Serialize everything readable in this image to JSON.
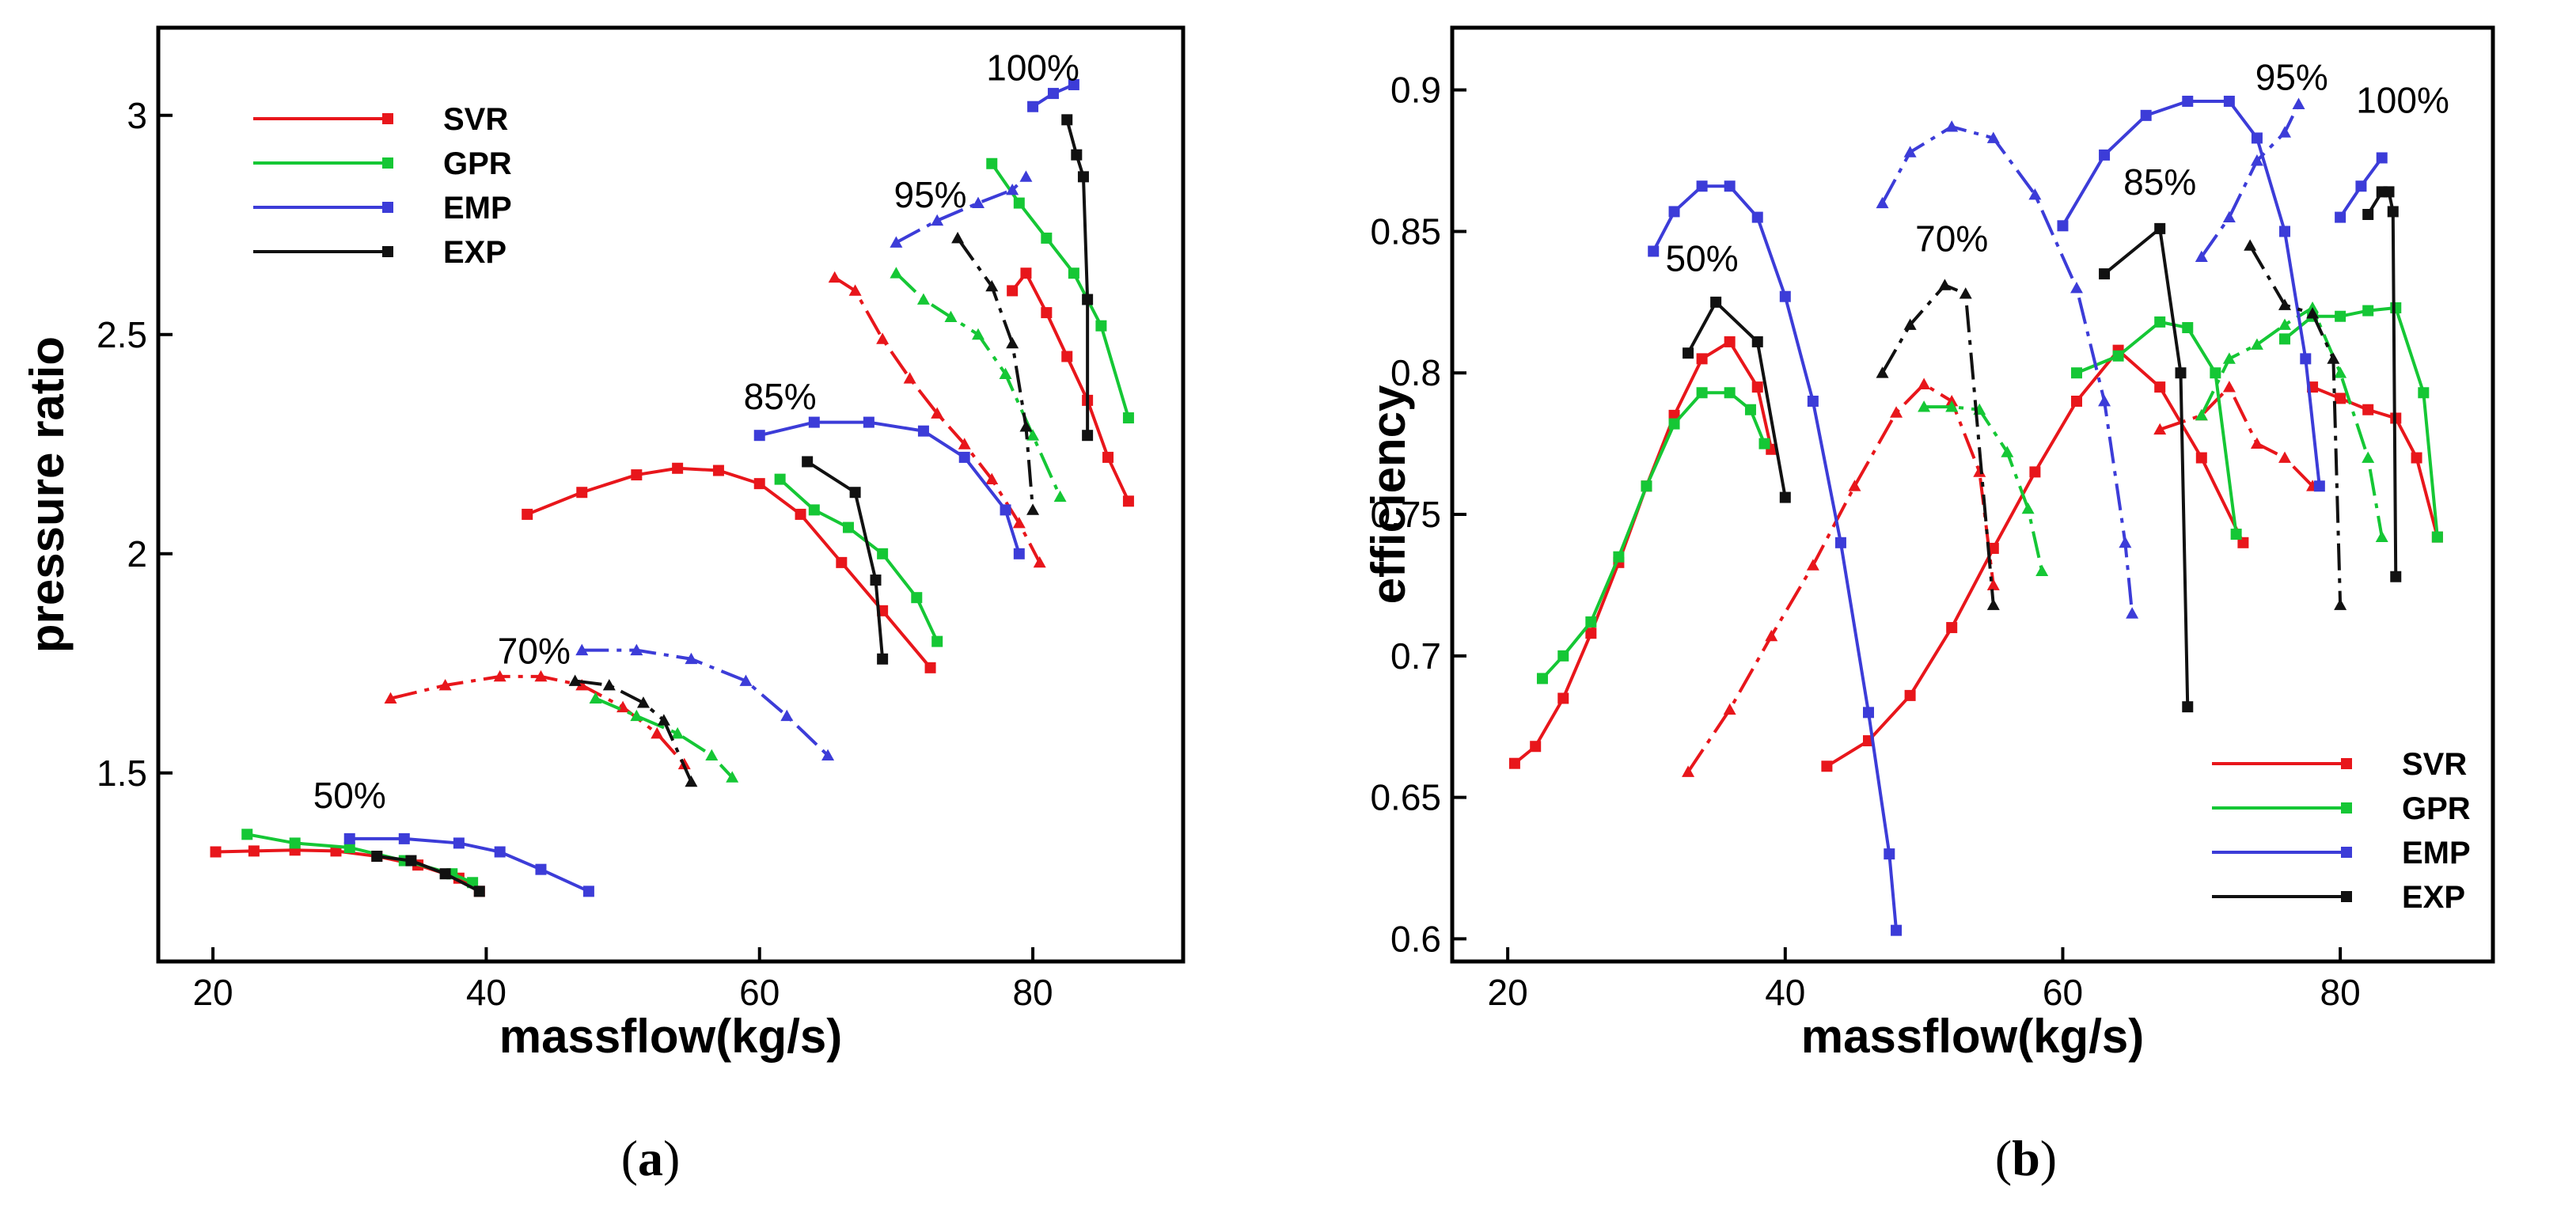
{
  "chart_data": [
    {
      "type": "line",
      "caption": "a",
      "xlabel": "massflow(kg/s)",
      "ylabel": "pressure ratio",
      "xlim": [
        16,
        91
      ],
      "ylim": [
        1.07,
        3.2
      ],
      "xticks": [
        20,
        40,
        60,
        80
      ],
      "yticks": [
        1.5,
        2,
        2.5,
        3
      ],
      "ytick_labels": [
        "1.5",
        "2",
        "2.5",
        "3"
      ],
      "legend": {
        "placement": "top-left",
        "entries": [
          "SVR",
          "GPR",
          "EMP",
          "EXP"
        ]
      },
      "speed_labels": [
        {
          "text": "50%",
          "x": 30,
          "y": 1.42
        },
        {
          "text": "70%",
          "x": 43.5,
          "y": 1.75
        },
        {
          "text": "85%",
          "x": 61.5,
          "y": 2.33
        },
        {
          "text": "95%",
          "x": 72.5,
          "y": 2.79
        },
        {
          "text": "100%",
          "x": 80,
          "y": 3.08
        }
      ],
      "series": [
        {
          "name": "SVR",
          "color": "#e8161b",
          "marker": "square",
          "speed": "50%",
          "x": [
            20.2,
            23,
            26,
            29,
            32,
            35,
            38,
            39.5
          ],
          "y": [
            1.32,
            1.322,
            1.324,
            1.322,
            1.31,
            1.29,
            1.26,
            1.23
          ]
        },
        {
          "name": "SVR",
          "color": "#e8161b",
          "marker": "triangle",
          "speed": "70%",
          "x": [
            33,
            37,
            41,
            44,
            47,
            50,
            52.5,
            54.5
          ],
          "y": [
            1.67,
            1.7,
            1.72,
            1.72,
            1.7,
            1.65,
            1.59,
            1.52
          ]
        },
        {
          "name": "SVR",
          "color": "#e8161b",
          "marker": "square",
          "speed": "85%",
          "x": [
            43,
            47,
            51,
            54,
            57,
            60,
            63,
            66,
            69,
            72.5
          ],
          "y": [
            2.09,
            2.14,
            2.18,
            2.195,
            2.19,
            2.16,
            2.09,
            1.98,
            1.87,
            1.74
          ]
        },
        {
          "name": "SVR",
          "color": "#e8161b",
          "marker": "triangle",
          "speed": "95%",
          "x": [
            65.5,
            67,
            69,
            71,
            73,
            75,
            77,
            79,
            80.5
          ],
          "y": [
            2.63,
            2.6,
            2.49,
            2.4,
            2.32,
            2.25,
            2.17,
            2.07,
            1.98
          ]
        },
        {
          "name": "SVR",
          "color": "#e8161b",
          "marker": "square",
          "speed": "100%",
          "x": [
            78.5,
            79.5,
            81,
            82.5,
            84,
            85.5,
            87
          ],
          "y": [
            2.6,
            2.64,
            2.55,
            2.45,
            2.35,
            2.22,
            2.12
          ]
        },
        {
          "name": "GPR",
          "color": "#15c735",
          "marker": "square",
          "speed": "50%",
          "x": [
            22.5,
            26,
            30,
            34,
            37.5,
            39
          ],
          "y": [
            1.36,
            1.34,
            1.33,
            1.3,
            1.27,
            1.25
          ]
        },
        {
          "name": "GPR",
          "color": "#15c735",
          "marker": "triangle",
          "speed": "70%",
          "x": [
            48,
            51,
            54,
            56.5,
            58
          ],
          "y": [
            1.67,
            1.63,
            1.59,
            1.54,
            1.49
          ]
        },
        {
          "name": "GPR",
          "color": "#15c735",
          "marker": "square",
          "speed": "85%",
          "x": [
            61.5,
            64,
            66.5,
            69,
            71.5,
            73
          ],
          "y": [
            2.17,
            2.1,
            2.06,
            2.0,
            1.9,
            1.8
          ]
        },
        {
          "name": "GPR",
          "color": "#15c735",
          "marker": "triangle",
          "speed": "95%",
          "x": [
            70,
            72,
            74,
            76,
            78,
            80,
            82
          ],
          "y": [
            2.64,
            2.58,
            2.54,
            2.5,
            2.41,
            2.27,
            2.13
          ]
        },
        {
          "name": "GPR",
          "color": "#15c735",
          "marker": "square",
          "speed": "100%",
          "x": [
            77,
            79,
            81,
            83,
            85,
            87
          ],
          "y": [
            2.89,
            2.8,
            2.72,
            2.64,
            2.52,
            2.31
          ]
        },
        {
          "name": "EMP",
          "color": "#3c3cd8",
          "marker": "square",
          "speed": "50%",
          "x": [
            30,
            34,
            38,
            41,
            44,
            47.5
          ],
          "y": [
            1.35,
            1.35,
            1.34,
            1.32,
            1.28,
            1.23
          ]
        },
        {
          "name": "EMP",
          "color": "#3c3cd8",
          "marker": "triangle",
          "speed": "70%",
          "x": [
            47,
            51,
            55,
            59,
            62,
            65
          ],
          "y": [
            1.78,
            1.78,
            1.76,
            1.71,
            1.63,
            1.54
          ]
        },
        {
          "name": "EMP",
          "color": "#3c3cd8",
          "marker": "square",
          "speed": "85%",
          "x": [
            60,
            64,
            68,
            72,
            75,
            78,
            79
          ],
          "y": [
            2.27,
            2.3,
            2.3,
            2.28,
            2.22,
            2.1,
            2.0
          ]
        },
        {
          "name": "EMP",
          "color": "#3c3cd8",
          "marker": "triangle",
          "speed": "95%",
          "x": [
            70,
            73,
            76,
            78.5,
            79.5
          ],
          "y": [
            2.71,
            2.76,
            2.8,
            2.83,
            2.86
          ]
        },
        {
          "name": "EMP",
          "color": "#3c3cd8",
          "marker": "square",
          "speed": "100%",
          "x": [
            80,
            81.5,
            83
          ],
          "y": [
            3.02,
            3.05,
            3.07
          ]
        },
        {
          "name": "EXP",
          "color": "#111111",
          "marker": "square",
          "speed": "50%",
          "x": [
            32,
            34.5,
            37,
            39.5
          ],
          "y": [
            1.31,
            1.3,
            1.27,
            1.23
          ]
        },
        {
          "name": "EXP",
          "color": "#111111",
          "marker": "triangle",
          "speed": "70%",
          "x": [
            46.5,
            49,
            51.5,
            53,
            55
          ],
          "y": [
            1.71,
            1.7,
            1.66,
            1.62,
            1.48
          ]
        },
        {
          "name": "EXP",
          "color": "#111111",
          "marker": "square",
          "speed": "85%",
          "x": [
            63.5,
            67,
            68.5,
            69
          ],
          "y": [
            2.21,
            2.14,
            1.94,
            1.76
          ]
        },
        {
          "name": "EXP",
          "color": "#111111",
          "marker": "triangle",
          "speed": "95%",
          "x": [
            74.5,
            77,
            78.5,
            79.5,
            80
          ],
          "y": [
            2.72,
            2.61,
            2.48,
            2.29,
            2.1
          ]
        },
        {
          "name": "EXP",
          "color": "#111111",
          "marker": "square",
          "speed": "100%",
          "x": [
            82.5,
            83.2,
            83.7,
            84,
            84
          ],
          "y": [
            2.99,
            2.91,
            2.86,
            2.58,
            2.27
          ]
        }
      ]
    },
    {
      "type": "line",
      "caption": "b",
      "xlabel": "massflow(kg/s)",
      "ylabel": "efficiency",
      "xlim": [
        16,
        91
      ],
      "ylim": [
        0.592,
        0.922
      ],
      "xticks": [
        20,
        40,
        60,
        80
      ],
      "yticks": [
        0.6,
        0.65,
        0.7,
        0.75,
        0.8,
        0.85,
        0.9
      ],
      "ytick_labels": [
        "0.6",
        "0.65",
        "0.7",
        "0.75",
        "0.8",
        "0.85",
        "0.9"
      ],
      "legend": {
        "placement": "bottom-right",
        "entries": [
          "SVR",
          "GPR",
          "EMP",
          "EXP"
        ]
      },
      "speed_labels": [
        {
          "text": "50%",
          "x": 34,
          "y": 0.836
        },
        {
          "text": "70%",
          "x": 52,
          "y": 0.843
        },
        {
          "text": "85%",
          "x": 67,
          "y": 0.863
        },
        {
          "text": "95%",
          "x": 76.5,
          "y": 0.9
        },
        {
          "text": "100%",
          "x": 84.5,
          "y": 0.892
        }
      ],
      "series": [
        {
          "name": "SVR",
          "color": "#e8161b",
          "marker": "square",
          "speed": "50%",
          "x": [
            20.5,
            22,
            24,
            26,
            28,
            30,
            32,
            34,
            36,
            38,
            39
          ],
          "y": [
            0.662,
            0.668,
            0.685,
            0.708,
            0.733,
            0.76,
            0.785,
            0.805,
            0.811,
            0.795,
            0.773
          ]
        },
        {
          "name": "SVR",
          "color": "#e8161b",
          "marker": "triangle",
          "speed": "70%",
          "x": [
            33,
            36,
            39,
            42,
            45,
            48,
            50,
            52,
            54,
            55
          ],
          "y": [
            0.659,
            0.681,
            0.707,
            0.732,
            0.76,
            0.786,
            0.796,
            0.79,
            0.765,
            0.725
          ]
        },
        {
          "name": "SVR",
          "color": "#e8161b",
          "marker": "square",
          "speed": "85%",
          "x": [
            43,
            46,
            49,
            52,
            55,
            58,
            61,
            64,
            67,
            70,
            73
          ],
          "y": [
            0.661,
            0.67,
            0.686,
            0.71,
            0.738,
            0.765,
            0.79,
            0.808,
            0.795,
            0.77,
            0.74
          ]
        },
        {
          "name": "SVR",
          "color": "#e8161b",
          "marker": "triangle",
          "speed": "95%",
          "x": [
            67,
            70,
            72,
            74,
            76,
            78
          ],
          "y": [
            0.78,
            0.785,
            0.795,
            0.775,
            0.77,
            0.76
          ]
        },
        {
          "name": "SVR",
          "color": "#e8161b",
          "marker": "square",
          "speed": "100%",
          "x": [
            78,
            80,
            82,
            84,
            85.5,
            87
          ],
          "y": [
            0.795,
            0.791,
            0.787,
            0.784,
            0.77,
            0.742
          ]
        },
        {
          "name": "GPR",
          "color": "#15c735",
          "marker": "square",
          "speed": "50%",
          "x": [
            22.5,
            24,
            26,
            28,
            30,
            32,
            34,
            36,
            37.5,
            38.5
          ],
          "y": [
            0.692,
            0.7,
            0.712,
            0.735,
            0.76,
            0.782,
            0.793,
            0.793,
            0.787,
            0.775
          ]
        },
        {
          "name": "GPR",
          "color": "#15c735",
          "marker": "triangle",
          "speed": "70%",
          "x": [
            50,
            52,
            54,
            56,
            57.5,
            58.5
          ],
          "y": [
            0.788,
            0.788,
            0.787,
            0.772,
            0.752,
            0.73
          ]
        },
        {
          "name": "GPR",
          "color": "#15c735",
          "marker": "square",
          "speed": "85%",
          "x": [
            61,
            64,
            67,
            69,
            71,
            72.5
          ],
          "y": [
            0.8,
            0.806,
            0.818,
            0.816,
            0.8,
            0.743
          ]
        },
        {
          "name": "GPR",
          "color": "#15c735",
          "marker": "triangle",
          "speed": "95%",
          "x": [
            70,
            72,
            74,
            76,
            78,
            80,
            82,
            83
          ],
          "y": [
            0.785,
            0.805,
            0.81,
            0.817,
            0.823,
            0.8,
            0.77,
            0.742
          ]
        },
        {
          "name": "GPR",
          "color": "#15c735",
          "marker": "square",
          "speed": "100%",
          "x": [
            76,
            78,
            80,
            82,
            84,
            86,
            87
          ],
          "y": [
            0.812,
            0.82,
            0.82,
            0.822,
            0.823,
            0.793,
            0.742
          ]
        },
        {
          "name": "EMP",
          "color": "#3c3cd8",
          "marker": "square",
          "speed": "50%",
          "x": [
            30.5,
            32,
            34,
            36,
            38,
            40,
            42,
            44,
            46,
            47.5,
            48
          ],
          "y": [
            0.843,
            0.857,
            0.866,
            0.866,
            0.855,
            0.827,
            0.79,
            0.74,
            0.68,
            0.63,
            0.603
          ]
        },
        {
          "name": "EMP",
          "color": "#3c3cd8",
          "marker": "triangle",
          "speed": "70%",
          "x": [
            47,
            49,
            52,
            55,
            58,
            61,
            63,
            64.5,
            65
          ],
          "y": [
            0.86,
            0.878,
            0.887,
            0.883,
            0.863,
            0.83,
            0.79,
            0.74,
            0.715
          ]
        },
        {
          "name": "EMP",
          "color": "#3c3cd8",
          "marker": "square",
          "speed": "85%",
          "x": [
            60,
            63,
            66,
            69,
            72,
            74,
            76,
            77.5,
            78.5
          ],
          "y": [
            0.852,
            0.877,
            0.891,
            0.896,
            0.896,
            0.883,
            0.85,
            0.805,
            0.76
          ]
        },
        {
          "name": "EMP",
          "color": "#3c3cd8",
          "marker": "triangle",
          "speed": "95%",
          "x": [
            70,
            72,
            74,
            76,
            77
          ],
          "y": [
            0.841,
            0.855,
            0.875,
            0.885,
            0.895
          ]
        },
        {
          "name": "EMP",
          "color": "#3c3cd8",
          "marker": "square",
          "speed": "100%",
          "x": [
            80,
            81.5,
            83
          ],
          "y": [
            0.855,
            0.866,
            0.876
          ]
        },
        {
          "name": "EXP",
          "color": "#111111",
          "marker": "square",
          "speed": "50%",
          "x": [
            33,
            35,
            38,
            40
          ],
          "y": [
            0.807,
            0.825,
            0.811,
            0.756
          ]
        },
        {
          "name": "EXP",
          "color": "#111111",
          "marker": "triangle",
          "speed": "70%",
          "x": [
            47,
            49,
            51.5,
            53,
            55
          ],
          "y": [
            0.8,
            0.817,
            0.831,
            0.828,
            0.718
          ]
        },
        {
          "name": "EXP",
          "color": "#111111",
          "marker": "square",
          "speed": "85%",
          "x": [
            63,
            67,
            68.5,
            69
          ],
          "y": [
            0.835,
            0.851,
            0.8,
            0.682
          ]
        },
        {
          "name": "EXP",
          "color": "#111111",
          "marker": "triangle",
          "speed": "95%",
          "x": [
            73.5,
            76,
            78,
            79.5,
            80
          ],
          "y": [
            0.845,
            0.824,
            0.821,
            0.805,
            0.718
          ]
        },
        {
          "name": "EXP",
          "color": "#111111",
          "marker": "square",
          "speed": "100%",
          "x": [
            82,
            83,
            83.5,
            83.8,
            84
          ],
          "y": [
            0.856,
            0.864,
            0.864,
            0.857,
            0.728
          ]
        }
      ]
    }
  ]
}
